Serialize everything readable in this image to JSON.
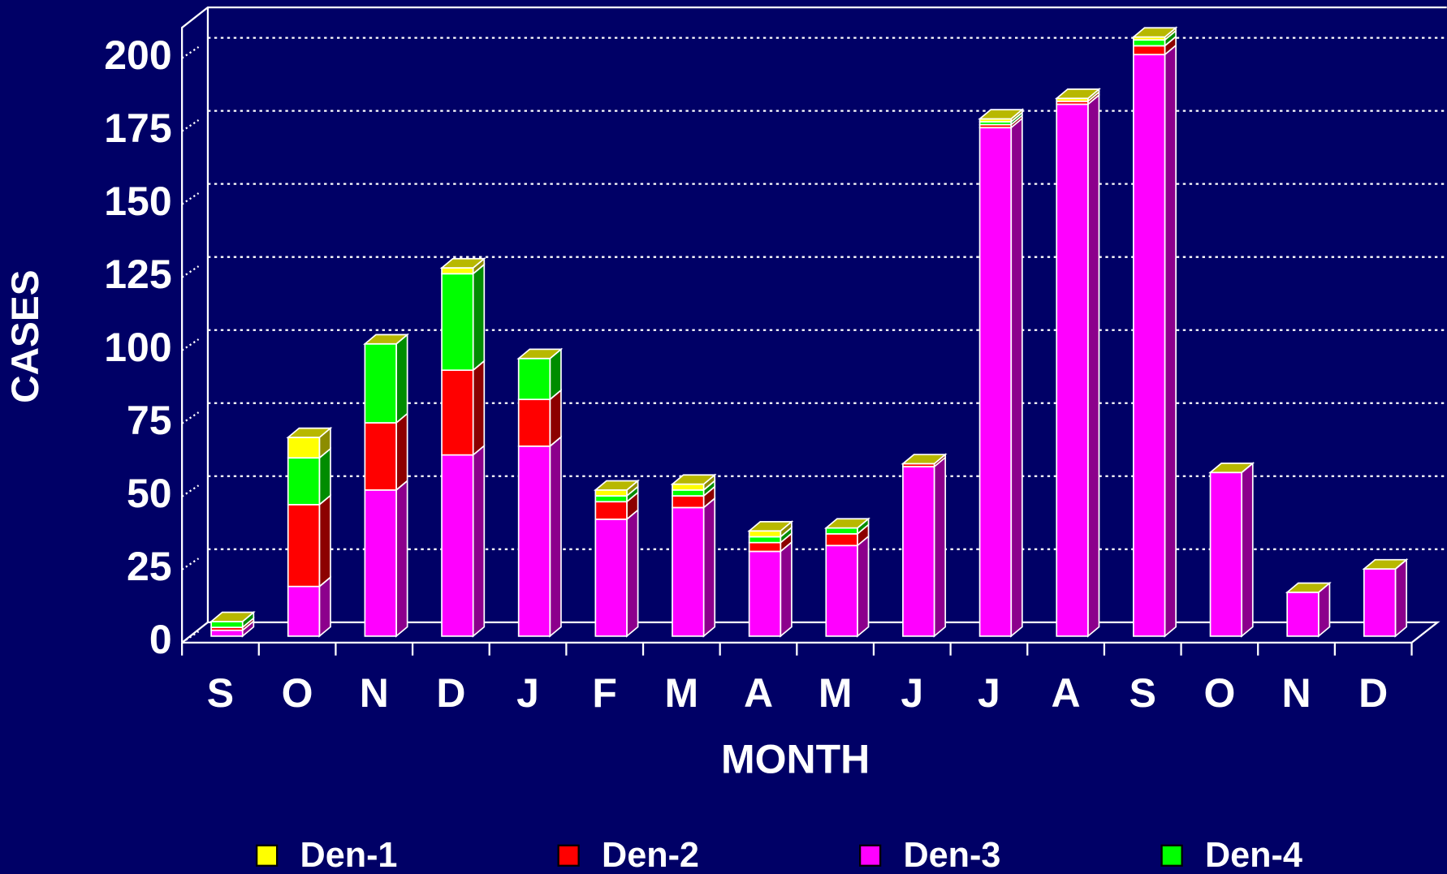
{
  "chart_data": {
    "type": "bar3d_stacked",
    "x_label": "MONTH",
    "y_label": "CASES",
    "categories": [
      "S",
      "O",
      "N",
      "D",
      "J",
      "F",
      "M",
      "A",
      "M",
      "J",
      "J",
      "A",
      "S",
      "O",
      "N",
      "D"
    ],
    "series": [
      {
        "name": "Den-1",
        "color": "#ffff00",
        "values": [
          0,
          7,
          0,
          2,
          0,
          2,
          2,
          2,
          0,
          0,
          1,
          1,
          1,
          0,
          0,
          0
        ]
      },
      {
        "name": "Den-2",
        "color": "#ff0000",
        "values": [
          1,
          28,
          23,
          29,
          16,
          6,
          4,
          3,
          4,
          1,
          1,
          1,
          3,
          0,
          0,
          0
        ]
      },
      {
        "name": "Den-3",
        "color": "#ff00ff",
        "values": [
          2,
          17,
          50,
          62,
          65,
          40,
          44,
          29,
          31,
          58,
          174,
          182,
          199,
          56,
          15,
          23
        ]
      },
      {
        "name": "Den-4",
        "color": "#00ff00",
        "values": [
          2,
          16,
          27,
          33,
          14,
          2,
          2,
          2,
          2,
          0,
          1,
          0,
          2,
          0,
          0,
          0
        ]
      }
    ],
    "ylim": [
      0,
      210
    ],
    "yticks": [
      0,
      25,
      50,
      75,
      100,
      125,
      150,
      175,
      200
    ],
    "grid": true,
    "legend": "bottom"
  }
}
